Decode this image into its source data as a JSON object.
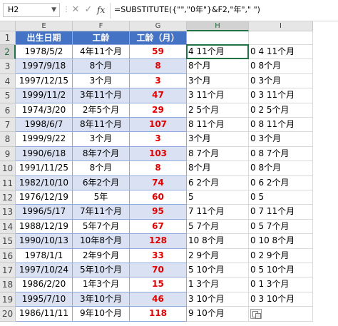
{
  "formula_bar": {
    "name_box": "H2",
    "cancel_symbol": "✕",
    "enter_symbol": "✓",
    "fx_label": "fx",
    "formula": "=SUBSTITUTE({\"\",\"0年\"}&F2,\"年\",\" \")"
  },
  "columns": [
    "E",
    "F",
    "G",
    "H",
    "I"
  ],
  "headers": {
    "E": "出生日期",
    "F": "工龄",
    "G": "工龄（月）"
  },
  "rows": [
    {
      "n": "1"
    },
    {
      "n": "2",
      "E": "1978/5/2",
      "F": "4年11个月",
      "G": "59",
      "H": "4 11个月",
      "I": "0 4 11个月"
    },
    {
      "n": "3",
      "E": "1997/9/18",
      "F": "8个月",
      "G": "8",
      "H": "8个月",
      "I": "0 8个月"
    },
    {
      "n": "4",
      "E": "1997/12/15",
      "F": "3个月",
      "G": "3",
      "H": "3个月",
      "I": "0 3个月"
    },
    {
      "n": "5",
      "E": "1999/11/2",
      "F": "3年11个月",
      "G": "47",
      "H": "3 11个月",
      "I": "0 3 11个月"
    },
    {
      "n": "6",
      "E": "1974/3/20",
      "F": "2年5个月",
      "G": "29",
      "H": "2 5个月",
      "I": "0 2 5个月"
    },
    {
      "n": "7",
      "E": "1998/6/7",
      "F": "8年11个月",
      "G": "107",
      "H": "8 11个月",
      "I": "0 8 11个月"
    },
    {
      "n": "8",
      "E": "1999/9/22",
      "F": "3个月",
      "G": "3",
      "H": "3个月",
      "I": "0 3个月"
    },
    {
      "n": "9",
      "E": "1990/6/18",
      "F": "8年7个月",
      "G": "103",
      "H": "8 7个月",
      "I": "0 8 7个月"
    },
    {
      "n": "10",
      "E": "1991/11/25",
      "F": "8个月",
      "G": "8",
      "H": "8个月",
      "I": "0 8个月"
    },
    {
      "n": "11",
      "E": "1982/10/10",
      "F": "6年2个月",
      "G": "74",
      "H": "6 2个月",
      "I": "0 6 2个月"
    },
    {
      "n": "12",
      "E": "1976/12/19",
      "F": "5年",
      "G": "60",
      "H": "5",
      "I": "0 5"
    },
    {
      "n": "13",
      "E": "1996/5/17",
      "F": "7年11个月",
      "G": "95",
      "H": "7 11个月",
      "I": "0 7 11个月"
    },
    {
      "n": "14",
      "E": "1988/12/19",
      "F": "5年7个月",
      "G": "67",
      "H": "5 7个月",
      "I": "0 5 7个月"
    },
    {
      "n": "15",
      "E": "1990/10/13",
      "F": "10年8个月",
      "G": "128",
      "H": "10 8个月",
      "I": "0 10 8个月"
    },
    {
      "n": "16",
      "E": "1978/1/1",
      "F": "2年9个月",
      "G": "33",
      "H": "2 9个月",
      "I": "0 2 9个月"
    },
    {
      "n": "17",
      "E": "1997/10/24",
      "F": "5年10个月",
      "G": "70",
      "H": "5 10个月",
      "I": "0 5 10个月"
    },
    {
      "n": "18",
      "E": "1986/2/20",
      "F": "1年3个月",
      "G": "15",
      "H": "1 3个月",
      "I": "0 1 3个月"
    },
    {
      "n": "19",
      "E": "1995/7/10",
      "F": "3年10个月",
      "G": "46",
      "H": "3 10个月",
      "I": "0 3 10个月"
    },
    {
      "n": "20",
      "E": "1986/11/11",
      "F": "9年10个月",
      "G": "118",
      "H": "9 10个月",
      "I": ""
    }
  ],
  "colors": {
    "header_blue": "#4472c4",
    "band_blue": "#d9e1f2",
    "value_red": "#e00000",
    "selection_green": "#217346"
  }
}
